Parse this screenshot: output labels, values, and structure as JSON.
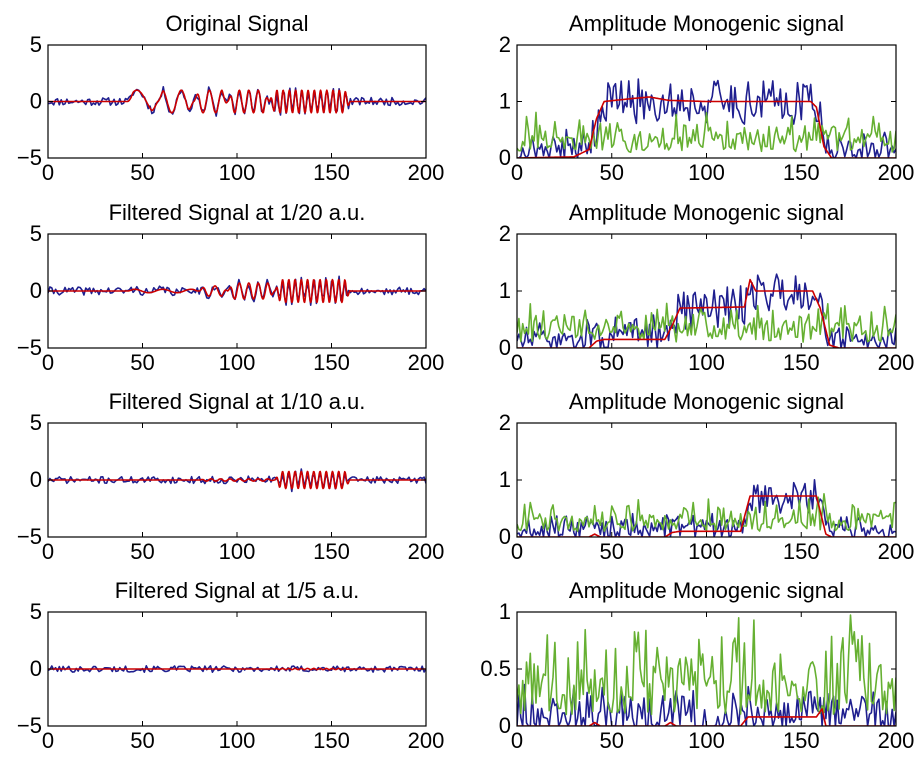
{
  "chart_data": [
    {
      "type": "line",
      "title": "Original Signal",
      "xlim": [
        0,
        200
      ],
      "ylim": [
        -5,
        5
      ],
      "xticks": [
        0,
        50,
        100,
        150,
        200
      ],
      "yticks": [
        -5,
        0,
        5
      ],
      "series": [
        {
          "kind": "noisy_signal",
          "color": "#1f1f8f",
          "noise": 0.35,
          "seed": 11,
          "bursts": [
            [
              42,
              58,
              1.0,
              20
            ],
            [
              58,
              77,
              1.0,
              10
            ],
            [
              77,
              95,
              1.0,
              6.7
            ],
            [
              95,
              117,
              1.0,
              5
            ],
            [
              117,
              160,
              1.0,
              3.3
            ]
          ]
        },
        {
          "kind": "clean_signal",
          "color": "#cc0000",
          "bursts": [
            [
              42,
              58,
              1.0,
              20
            ],
            [
              58,
              77,
              1.0,
              10
            ],
            [
              77,
              95,
              1.0,
              6.7
            ],
            [
              95,
              117,
              1.0,
              5
            ],
            [
              117,
              160,
              1.0,
              3.3
            ]
          ]
        }
      ]
    },
    {
      "type": "line",
      "title": "Amplitude Monogenic signal",
      "xlim": [
        0,
        200
      ],
      "ylim": [
        0,
        2
      ],
      "xticks": [
        0,
        50,
        100,
        150,
        200
      ],
      "yticks": [
        0,
        1,
        2
      ],
      "series": [
        {
          "kind": "noisy_amplitude",
          "color": "#1f1f8f",
          "noise_floor": 0.25,
          "noise": 0.4,
          "seed": 21,
          "steps": [
            [
              0,
              0
            ],
            [
              38,
              0.1
            ],
            [
              45,
              1.0
            ],
            [
              160,
              1.0
            ],
            [
              163,
              0.05
            ],
            [
              200,
              0
            ]
          ]
        },
        {
          "kind": "noise_amplitude",
          "color": "#66b032",
          "noise_floor": 0.1,
          "noise": 0.5,
          "seed": 31
        },
        {
          "kind": "smooth_amplitude",
          "color": "#cc0000",
          "points": [
            [
              0,
              0
            ],
            [
              30,
              0.02
            ],
            [
              38,
              0.15
            ],
            [
              42,
              0.7
            ],
            [
              46,
              1.0
            ],
            [
              60,
              1.05
            ],
            [
              70,
              1.08
            ],
            [
              80,
              1.02
            ],
            [
              100,
              1.0
            ],
            [
              130,
              1.0
            ],
            [
              155,
              1.0
            ],
            [
              158,
              0.9
            ],
            [
              162,
              0.2
            ],
            [
              166,
              0.0
            ],
            [
              200,
              0.0
            ]
          ]
        }
      ]
    },
    {
      "type": "line",
      "title": "Filtered Signal at 1/20 a.u.",
      "xlim": [
        0,
        200
      ],
      "ylim": [
        -5,
        5
      ],
      "xticks": [
        0,
        50,
        100,
        150,
        200
      ],
      "yticks": [
        -5,
        0,
        5
      ],
      "series": [
        {
          "kind": "noisy_signal",
          "color": "#1f1f8f",
          "noise": 0.35,
          "seed": 41,
          "bursts": [
            [
              42,
              80,
              0.15,
              15
            ],
            [
              80,
              95,
              0.45,
              6.7
            ],
            [
              95,
              120,
              0.7,
              5
            ],
            [
              120,
              160,
              1.0,
              3.3
            ]
          ]
        },
        {
          "kind": "clean_signal",
          "color": "#cc0000",
          "bursts": [
            [
              42,
              80,
              0.15,
              15
            ],
            [
              80,
              95,
              0.45,
              6.7
            ],
            [
              95,
              120,
              0.7,
              5
            ],
            [
              120,
              160,
              1.0,
              3.3
            ]
          ]
        }
      ]
    },
    {
      "type": "line",
      "title": "Amplitude Monogenic signal",
      "xlim": [
        0,
        200
      ],
      "ylim": [
        0,
        2
      ],
      "xticks": [
        0,
        50,
        100,
        150,
        200
      ],
      "yticks": [
        0,
        1,
        2
      ],
      "series": [
        {
          "kind": "noisy_amplitude",
          "color": "#1f1f8f",
          "noise_floor": 0.25,
          "noise": 0.35,
          "seed": 51,
          "steps": [
            [
              0,
              0
            ],
            [
              40,
              0.1
            ],
            [
              80,
              0.15
            ],
            [
              85,
              0.65
            ],
            [
              120,
              0.75
            ],
            [
              123,
              1.0
            ],
            [
              160,
              1.0
            ],
            [
              163,
              0.05
            ],
            [
              200,
              0
            ]
          ]
        },
        {
          "kind": "noise_amplitude",
          "color": "#66b032",
          "noise_floor": 0.1,
          "noise": 0.5,
          "seed": 61
        },
        {
          "kind": "smooth_amplitude",
          "color": "#cc0000",
          "points": [
            [
              0,
              0
            ],
            [
              38,
              0
            ],
            [
              42,
              0.12
            ],
            [
              46,
              0.15
            ],
            [
              78,
              0.15
            ],
            [
              82,
              0.4
            ],
            [
              86,
              0.7
            ],
            [
              120,
              0.72
            ],
            [
              123,
              1.2
            ],
            [
              126,
              1.0
            ],
            [
              156,
              1.0
            ],
            [
              160,
              0.7
            ],
            [
              165,
              0.05
            ],
            [
              170,
              0
            ],
            [
              200,
              0
            ]
          ]
        }
      ]
    },
    {
      "type": "line",
      "title": "Filtered Signal at 1/10 a.u.",
      "xlim": [
        0,
        200
      ],
      "ylim": [
        -5,
        5
      ],
      "xticks": [
        0,
        50,
        100,
        150,
        200
      ],
      "yticks": [
        -5,
        0,
        5
      ],
      "series": [
        {
          "kind": "noisy_signal",
          "color": "#1f1f8f",
          "noise": 0.3,
          "seed": 71,
          "bursts": [
            [
              80,
              120,
              0.1,
              5
            ],
            [
              120,
              160,
              0.75,
              3.3
            ]
          ]
        },
        {
          "kind": "clean_signal",
          "color": "#cc0000",
          "bursts": [
            [
              80,
              120,
              0.1,
              5
            ],
            [
              120,
              160,
              0.75,
              3.3
            ]
          ]
        }
      ]
    },
    {
      "type": "line",
      "title": "Amplitude Monogenic signal",
      "xlim": [
        0,
        200
      ],
      "ylim": [
        0,
        2
      ],
      "xticks": [
        0,
        50,
        100,
        150,
        200
      ],
      "yticks": [
        0,
        1,
        2
      ],
      "series": [
        {
          "kind": "noisy_amplitude",
          "color": "#1f1f8f",
          "noise_floor": 0.22,
          "noise": 0.3,
          "seed": 81,
          "steps": [
            [
              0,
              0
            ],
            [
              120,
              0.1
            ],
            [
              123,
              0.72
            ],
            [
              160,
              0.72
            ],
            [
              163,
              0.05
            ],
            [
              200,
              0
            ]
          ]
        },
        {
          "kind": "noise_amplitude",
          "color": "#66b032",
          "noise_floor": 0.1,
          "noise": 0.45,
          "seed": 91
        },
        {
          "kind": "smooth_amplitude",
          "color": "#cc0000",
          "points": [
            [
              0,
              0
            ],
            [
              38,
              0
            ],
            [
              41,
              0.05
            ],
            [
              44,
              0
            ],
            [
              78,
              0
            ],
            [
              82,
              0.08
            ],
            [
              86,
              0.1
            ],
            [
              118,
              0.1
            ],
            [
              123,
              0.72
            ],
            [
              158,
              0.72
            ],
            [
              163,
              0.05
            ],
            [
              166,
              0
            ],
            [
              200,
              0
            ]
          ]
        }
      ]
    },
    {
      "type": "line",
      "title": "Filtered Signal at 1/5 a.u.",
      "xlim": [
        0,
        200
      ],
      "ylim": [
        -5,
        5
      ],
      "xticks": [
        0,
        50,
        100,
        150,
        200
      ],
      "yticks": [
        -5,
        0,
        5
      ],
      "series": [
        {
          "kind": "noisy_signal",
          "color": "#1f1f8f",
          "noise": 0.28,
          "seed": 101,
          "bursts": []
        },
        {
          "kind": "clean_signal",
          "color": "#cc0000",
          "bursts": [
            [
              120,
              160,
              0.05,
              3.3
            ]
          ]
        }
      ]
    },
    {
      "type": "line",
      "title": "Amplitude Monogenic signal",
      "xlim": [
        0,
        200
      ],
      "ylim": [
        0,
        1
      ],
      "xticks": [
        0,
        50,
        100,
        150,
        200
      ],
      "yticks": [
        0,
        0.5,
        1
      ],
      "series": [
        {
          "kind": "noisy_amplitude",
          "color": "#1f1f8f",
          "noise_floor": 0.2,
          "noise": 0.3,
          "seed": 111,
          "steps": [
            [
              0,
              0
            ],
            [
              200,
              0
            ]
          ]
        },
        {
          "kind": "noise_amplitude",
          "color": "#66b032",
          "noise_floor": 0.1,
          "noise": 0.6,
          "seed": 121
        },
        {
          "kind": "smooth_amplitude",
          "color": "#cc0000",
          "points": [
            [
              0,
              0
            ],
            [
              38,
              0
            ],
            [
              41,
              0.03
            ],
            [
              44,
              0
            ],
            [
              78,
              0
            ],
            [
              81,
              0.03
            ],
            [
              84,
              0
            ],
            [
              118,
              0
            ],
            [
              122,
              0.08
            ],
            [
              158,
              0.08
            ],
            [
              161,
              0.15
            ],
            [
              163,
              0
            ],
            [
              200,
              0
            ]
          ]
        }
      ]
    }
  ]
}
